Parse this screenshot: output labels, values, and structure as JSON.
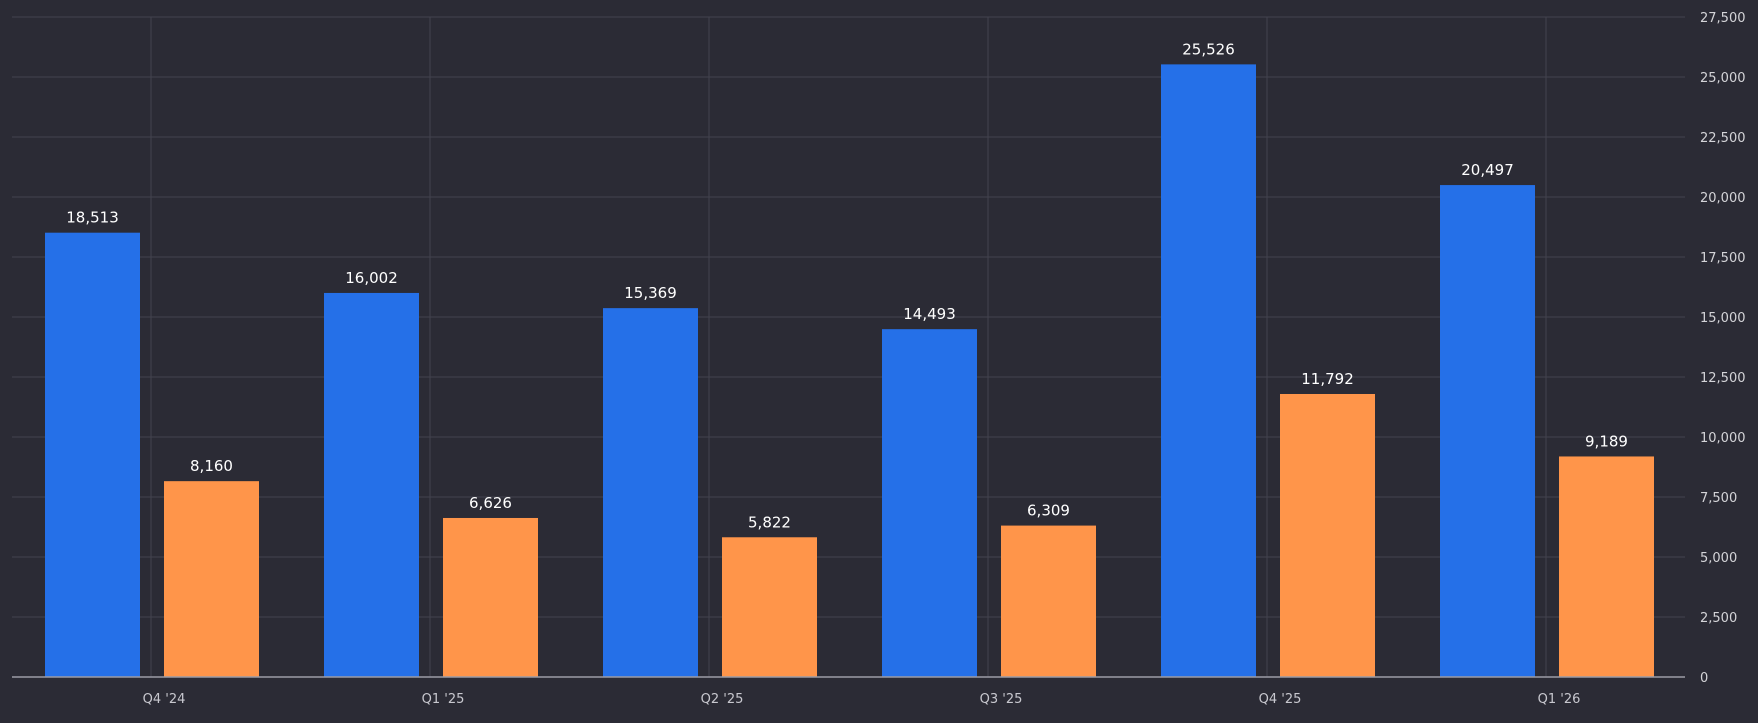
{
  "chart_data": {
    "type": "bar",
    "categories": [
      "Q4 '24",
      "Q1 '25",
      "Q2 '25",
      "Q3 '25",
      "Q4 '25",
      "Q1 '26"
    ],
    "series": [
      {
        "color": "#2570e8",
        "values": [
          18513,
          16002,
          15369,
          14493,
          25526,
          20497
        ]
      },
      {
        "color": "#ff954a",
        "values": [
          8160,
          6626,
          5822,
          6309,
          11792,
          9189
        ]
      }
    ],
    "data_labels": [
      [
        "18,513",
        "16,002",
        "15,369",
        "14,493",
        "25,526",
        "20,497"
      ],
      [
        "8,160",
        "6,626",
        "5,822",
        "6,309",
        "11,792",
        "9,189"
      ]
    ],
    "y_ticks": [
      0,
      2500,
      5000,
      7500,
      10000,
      12500,
      15000,
      17500,
      20000,
      22500,
      25000,
      27500
    ],
    "y_tick_labels": [
      "0",
      "2,500",
      "5,000",
      "7,500",
      "10,000",
      "12,500",
      "15,000",
      "17,500",
      "20,000",
      "22,500",
      "25,000",
      "27,500"
    ],
    "ylim": [
      0,
      27500
    ],
    "y_axis_position": "right",
    "grid": true,
    "legend": "none",
    "title": "",
    "xlabel": "",
    "ylabel": ""
  }
}
